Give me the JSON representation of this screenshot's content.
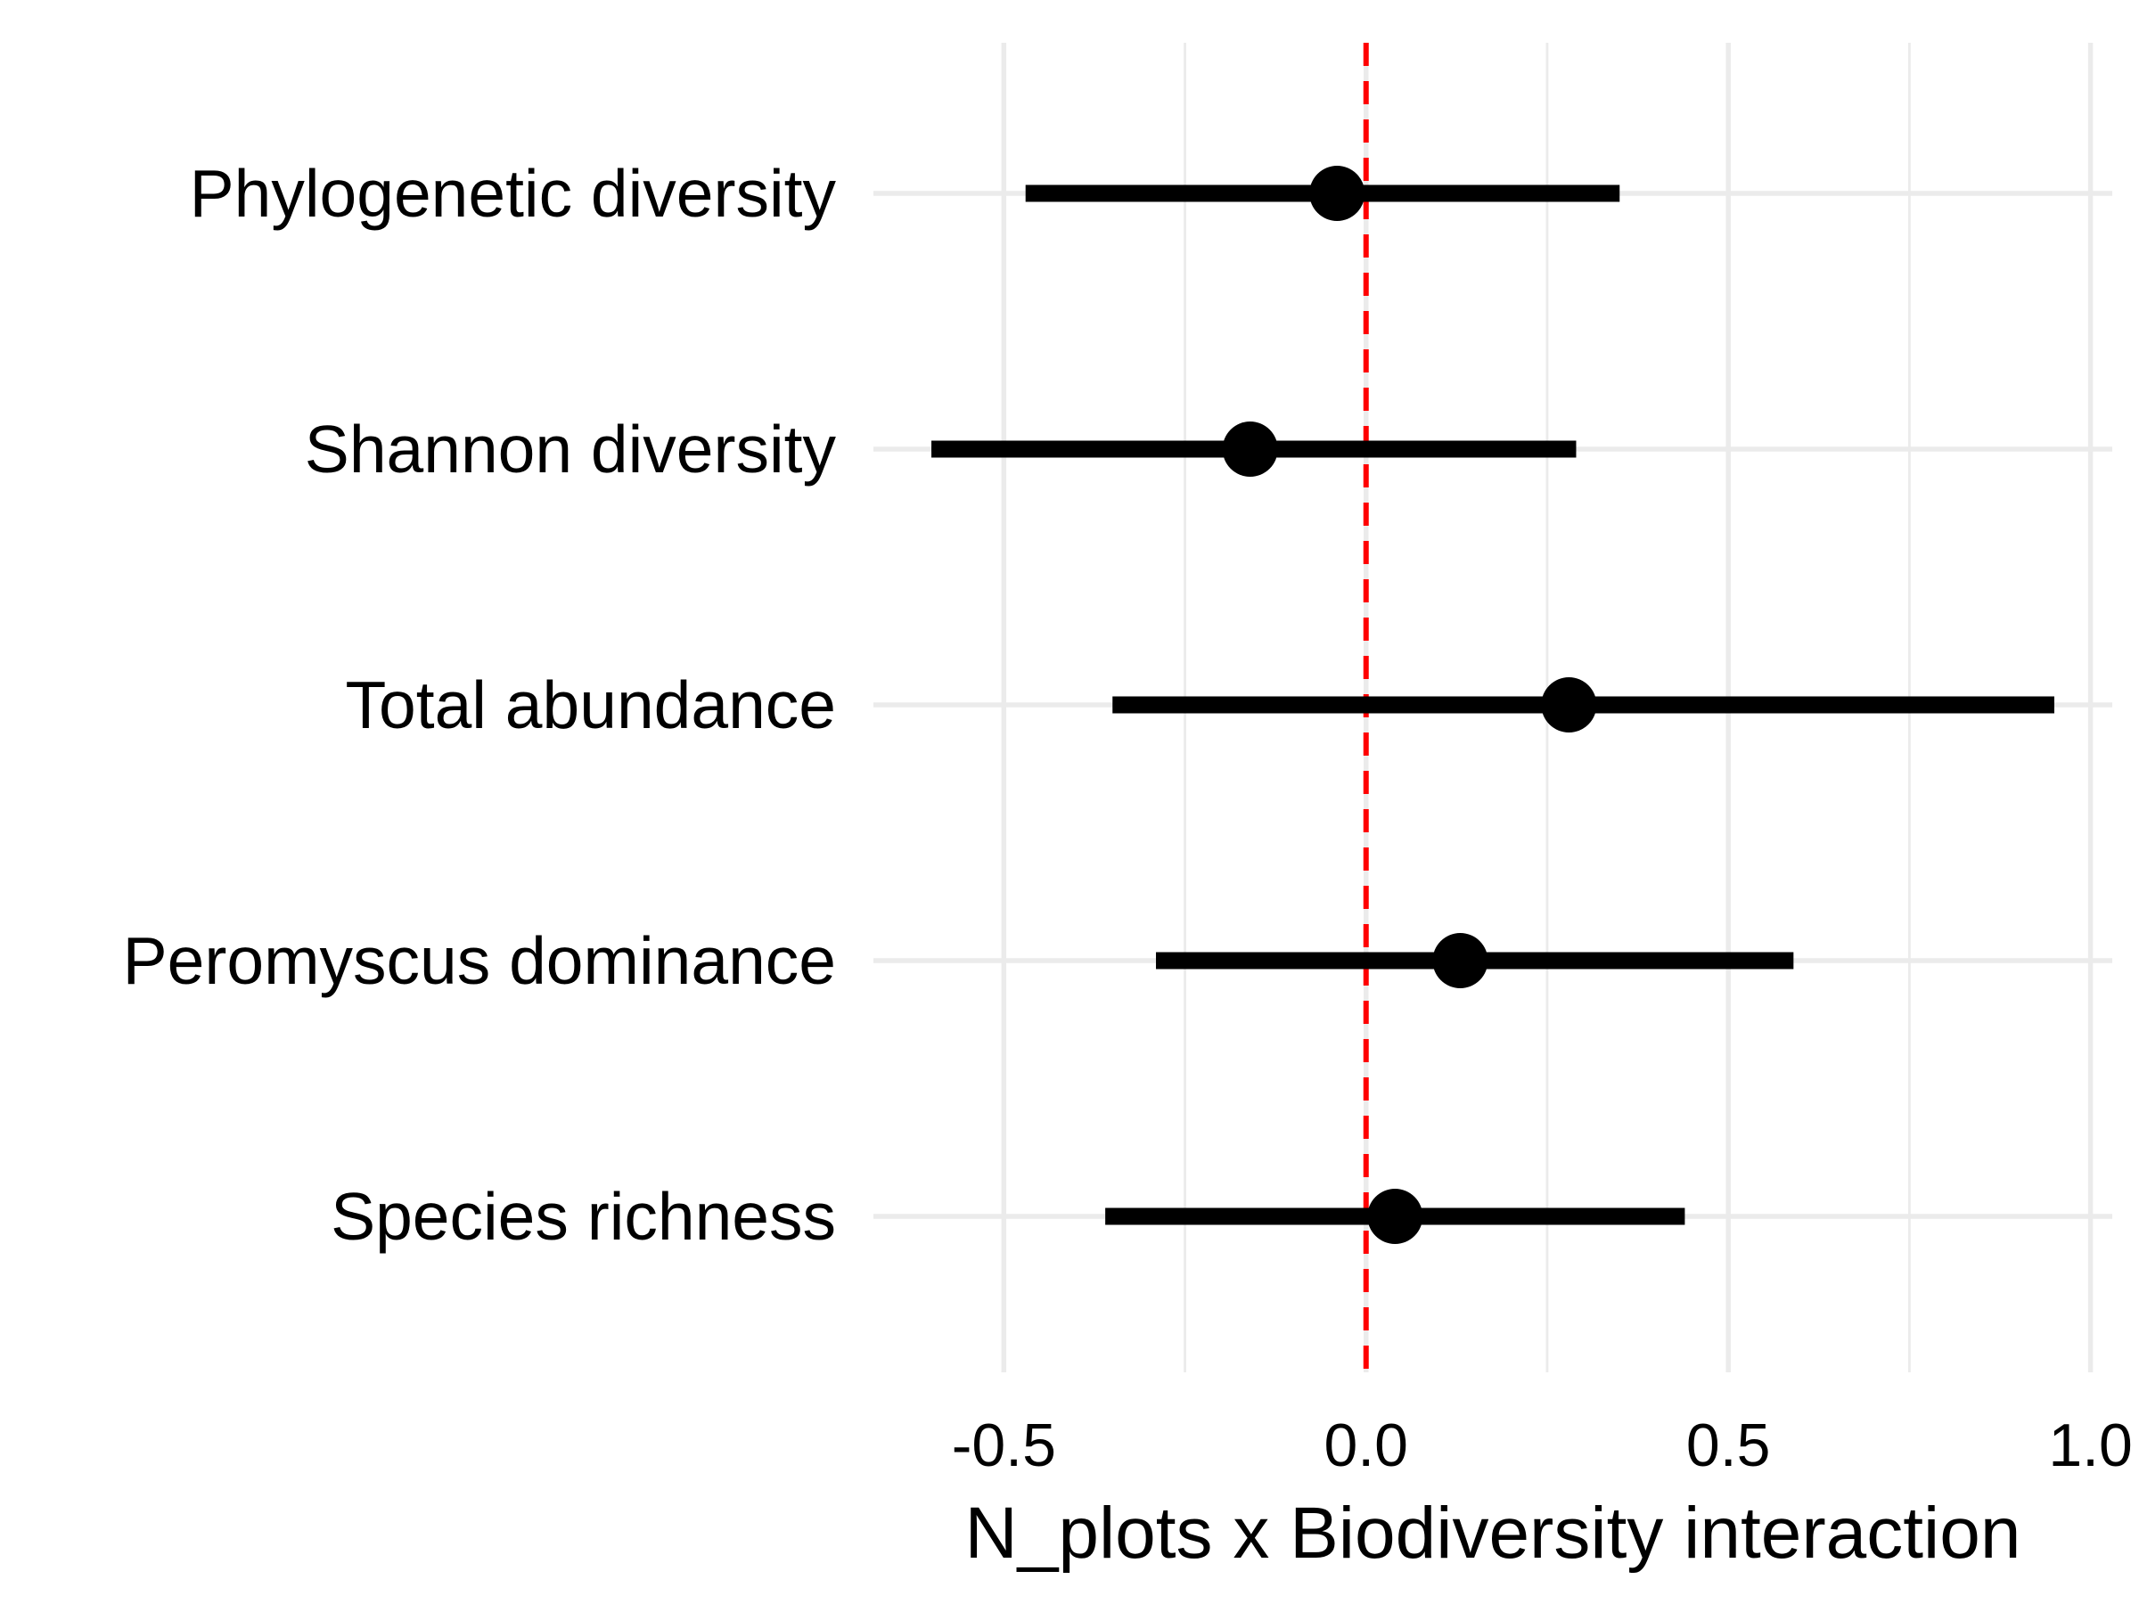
{
  "chart_data": {
    "type": "forest",
    "title": "",
    "xlabel": "N_plots x Biodiversity interaction",
    "ylabel": "",
    "xlim": [
      -0.68,
      1.03
    ],
    "x_ticks": [
      -0.5,
      0.0,
      0.5,
      1.0
    ],
    "x_tick_labels": [
      "-0.5",
      "0.0",
      "0.5",
      "1.0"
    ],
    "x_minor_ticks": [
      -0.25,
      0.25,
      0.75
    ],
    "reference_line": {
      "x": 0.0,
      "color": "#ff0000",
      "style": "dashed"
    },
    "grid": true,
    "point_color": "#000000",
    "categories": [
      "Phylogenetic diversity",
      "Shannon diversity",
      "Total abundance",
      "Peromyscus dominance",
      "Species richness"
    ],
    "estimates": [
      -0.04,
      -0.16,
      0.28,
      0.13,
      0.04
    ],
    "lower": [
      -0.47,
      -0.6,
      -0.35,
      -0.29,
      -0.36
    ],
    "upper": [
      0.35,
      0.29,
      0.95,
      0.59,
      0.44
    ]
  }
}
